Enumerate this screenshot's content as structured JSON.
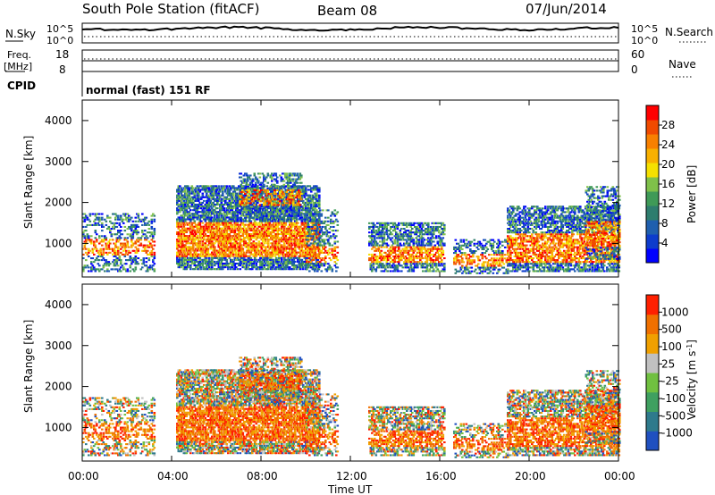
{
  "header": {
    "station": "South Pole Station (fitACF)",
    "beam": "Beam 08",
    "date": "07/Jun/2014"
  },
  "panels": {
    "nsky_label": "N.Sky",
    "nsky_ticks": [
      "10^5",
      "10^0"
    ],
    "nsearch_label": "N.Search",
    "nsearch_ticks": [
      "10^5",
      "10^0"
    ],
    "freq_label": "Freq.",
    "freq_unit": "[MHz]",
    "freq_ticks": [
      "18",
      "8"
    ],
    "nave_label": "Nave",
    "nave_ticks": [
      "60",
      "0"
    ],
    "cpid_label": "CPID",
    "cpid_value": "normal (fast) 151 RF"
  },
  "chart_data": [
    {
      "type": "heatmap",
      "ylabel": "Slant Range [km]",
      "xlabel": "Time UT",
      "x_ticks": [
        "00:00",
        "04:00",
        "08:00",
        "12:00",
        "16:00",
        "20:00",
        "00:00"
      ],
      "y_ticks": [
        "1000",
        "2000",
        "3000",
        "4000"
      ],
      "ylim": [
        180,
        4500
      ],
      "colorbar_label": "Power [dB]",
      "colorbar_ticks": [
        "28",
        "24",
        "20",
        "16",
        "12",
        "8",
        "4"
      ],
      "colorbar_colors": [
        "#0000ff",
        "#0d3ccc",
        "#1f5fae",
        "#2e7d6e",
        "#3f9a57",
        "#7fc04a",
        "#f5e000",
        "#f8b000",
        "#f88000",
        "#f04a00",
        "#ff0000"
      ]
    },
    {
      "type": "heatmap",
      "ylabel": "Slant Range [km]",
      "xlabel": "Time UT",
      "x_ticks": [
        "00:00",
        "04:00",
        "08:00",
        "12:00",
        "16:00",
        "20:00",
        "00:00"
      ],
      "y_ticks": [
        "1000",
        "2000",
        "3000",
        "4000"
      ],
      "ylim": [
        180,
        4500
      ],
      "colorbar_label": "Velocity [m s^-1]",
      "colorbar_ticks": [
        "1000",
        "500",
        "100",
        "25",
        "-25",
        "-100",
        "-500",
        "-1000"
      ],
      "colorbar_colors": [
        "#2050c0",
        "#2e7a8c",
        "#3fa060",
        "#70c040",
        "#c0c0c0",
        "#f0a000",
        "#f07000",
        "#ff2000"
      ]
    }
  ]
}
